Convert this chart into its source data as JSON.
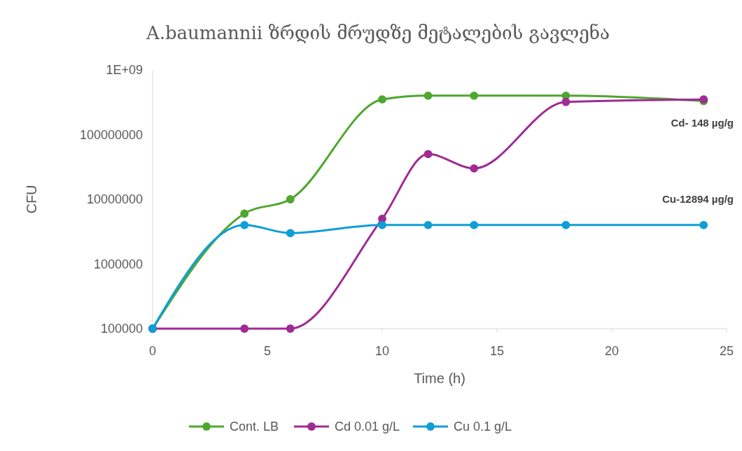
{
  "chart_data": {
    "type": "line",
    "title": "A.baumannii ზრდის მრუდზე მეტალების გავლენა",
    "xlabel": "Time (h)",
    "ylabel": "CFU",
    "x": [
      0,
      4,
      6,
      10,
      12,
      14,
      18,
      24
    ],
    "series": [
      {
        "name": "Cont. LB",
        "color": "#4ea72e",
        "values": [
          100000,
          6000000,
          10000000,
          350000000,
          400000000,
          400000000,
          400000000,
          330000000
        ]
      },
      {
        "name": "Cd 0.01 g/L",
        "color": "#a02b93",
        "values": [
          100000,
          100000,
          100000,
          5000000,
          50000000,
          30000000,
          320000000,
          350000000
        ]
      },
      {
        "name": "Cu 0.1 g/L",
        "color": "#0f9ed5",
        "values": [
          100000,
          4000000,
          3000000,
          4000000,
          4000000,
          4000000,
          4000000,
          4000000
        ]
      }
    ],
    "log": "y",
    "xlim": [
      0,
      25
    ],
    "xticks": [
      0,
      5,
      10,
      15,
      20,
      25
    ],
    "ylim": [
      100000,
      1000000000
    ],
    "yticks": [
      100000,
      1000000,
      10000000,
      100000000,
      {
        "value": 1000000000,
        "label": "1E+09"
      }
    ],
    "grid": false,
    "legend": "bottom",
    "marker": "circle",
    "line_style": "solid",
    "annotations": [
      "Cd- 148 µg/g",
      "Cu-12894 µg/g"
    ]
  }
}
